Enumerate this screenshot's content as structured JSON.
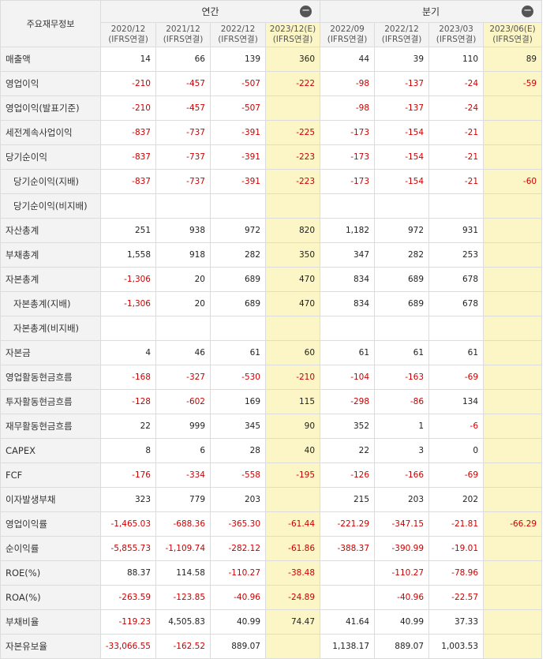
{
  "header": {
    "corner": "주요재무정보",
    "groups": [
      {
        "label": "연간",
        "toggle": "−"
      },
      {
        "label": "분기",
        "toggle": "−"
      }
    ],
    "columns": [
      {
        "date": "2020/12",
        "basis": "(IFRS연결)",
        "est": false
      },
      {
        "date": "2021/12",
        "basis": "(IFRS연결)",
        "est": false
      },
      {
        "date": "2022/12",
        "basis": "(IFRS연결)",
        "est": false
      },
      {
        "date": "2023/12(E)",
        "basis": "(IFRS연결)",
        "est": true
      },
      {
        "date": "2022/09",
        "basis": "(IFRS연결)",
        "est": false
      },
      {
        "date": "2022/12",
        "basis": "(IFRS연결)",
        "est": false
      },
      {
        "date": "2023/03",
        "basis": "(IFRS연결)",
        "est": false
      },
      {
        "date": "2023/06(E)",
        "basis": "(IFRS연결)",
        "est": true
      }
    ]
  },
  "rows": [
    {
      "label": "매출액",
      "sub": false,
      "values": [
        "14",
        "66",
        "139",
        "360",
        "44",
        "39",
        "110",
        "89"
      ]
    },
    {
      "label": "영업이익",
      "sub": false,
      "values": [
        "-210",
        "-457",
        "-507",
        "-222",
        "-98",
        "-137",
        "-24",
        "-59"
      ]
    },
    {
      "label": "영업이익(발표기준)",
      "sub": false,
      "values": [
        "-210",
        "-457",
        "-507",
        "",
        "-98",
        "-137",
        "-24",
        ""
      ]
    },
    {
      "label": "세전계속사업이익",
      "sub": false,
      "values": [
        "-837",
        "-737",
        "-391",
        "-225",
        "-173",
        "-154",
        "-21",
        ""
      ]
    },
    {
      "label": "당기순이익",
      "sub": false,
      "values": [
        "-837",
        "-737",
        "-391",
        "-223",
        "-173",
        "-154",
        "-21",
        ""
      ]
    },
    {
      "label": "당기순이익(지배)",
      "sub": true,
      "values": [
        "-837",
        "-737",
        "-391",
        "-223",
        "-173",
        "-154",
        "-21",
        "-60"
      ]
    },
    {
      "label": "당기순이익(비지배)",
      "sub": true,
      "values": [
        "",
        "",
        "",
        "",
        "",
        "",
        "",
        ""
      ]
    },
    {
      "label": "자산총계",
      "sub": false,
      "values": [
        "251",
        "938",
        "972",
        "820",
        "1,182",
        "972",
        "931",
        ""
      ]
    },
    {
      "label": "부채총계",
      "sub": false,
      "values": [
        "1,558",
        "918",
        "282",
        "350",
        "347",
        "282",
        "253",
        ""
      ]
    },
    {
      "label": "자본총계",
      "sub": false,
      "values": [
        "-1,306",
        "20",
        "689",
        "470",
        "834",
        "689",
        "678",
        ""
      ]
    },
    {
      "label": "자본총계(지배)",
      "sub": true,
      "values": [
        "-1,306",
        "20",
        "689",
        "470",
        "834",
        "689",
        "678",
        ""
      ]
    },
    {
      "label": "자본총계(비지배)",
      "sub": true,
      "values": [
        "",
        "",
        "",
        "",
        "",
        "",
        "",
        ""
      ]
    },
    {
      "label": "자본금",
      "sub": false,
      "values": [
        "4",
        "46",
        "61",
        "60",
        "61",
        "61",
        "61",
        ""
      ]
    },
    {
      "label": "영업활동현금흐름",
      "sub": false,
      "values": [
        "-168",
        "-327",
        "-530",
        "-210",
        "-104",
        "-163",
        "-69",
        ""
      ]
    },
    {
      "label": "투자활동현금흐름",
      "sub": false,
      "values": [
        "-128",
        "-602",
        "169",
        "115",
        "-298",
        "-86",
        "134",
        ""
      ]
    },
    {
      "label": "재무활동현금흐름",
      "sub": false,
      "values": [
        "22",
        "999",
        "345",
        "90",
        "352",
        "1",
        "-6",
        ""
      ]
    },
    {
      "label": "CAPEX",
      "sub": false,
      "values": [
        "8",
        "6",
        "28",
        "40",
        "22",
        "3",
        "0",
        ""
      ]
    },
    {
      "label": "FCF",
      "sub": false,
      "values": [
        "-176",
        "-334",
        "-558",
        "-195",
        "-126",
        "-166",
        "-69",
        ""
      ]
    },
    {
      "label": "이자발생부채",
      "sub": false,
      "values": [
        "323",
        "779",
        "203",
        "",
        "215",
        "203",
        "202",
        ""
      ]
    },
    {
      "label": "영업이익률",
      "sub": false,
      "values": [
        "-1,465.03",
        "-688.36",
        "-365.30",
        "-61.44",
        "-221.29",
        "-347.15",
        "-21.81",
        "-66.29"
      ]
    },
    {
      "label": "순이익률",
      "sub": false,
      "values": [
        "-5,855.73",
        "-1,109.74",
        "-282.12",
        "-61.86",
        "-388.37",
        "-390.99",
        "-19.01",
        ""
      ]
    },
    {
      "label": "ROE(%)",
      "sub": false,
      "values": [
        "88.37",
        "114.58",
        "-110.27",
        "-38.48",
        "",
        "-110.27",
        "-78.96",
        ""
      ]
    },
    {
      "label": "ROA(%)",
      "sub": false,
      "values": [
        "-263.59",
        "-123.85",
        "-40.96",
        "-24.89",
        "",
        "-40.96",
        "-22.57",
        ""
      ]
    },
    {
      "label": "부채비율",
      "sub": false,
      "values": [
        "-119.23",
        "4,505.83",
        "40.99",
        "74.47",
        "41.64",
        "40.99",
        "37.33",
        ""
      ]
    },
    {
      "label": "자본유보율",
      "sub": false,
      "values": [
        "-33,066.55",
        "-162.52",
        "889.07",
        "",
        "1,138.17",
        "889.07",
        "1,003.53",
        ""
      ]
    }
  ]
}
